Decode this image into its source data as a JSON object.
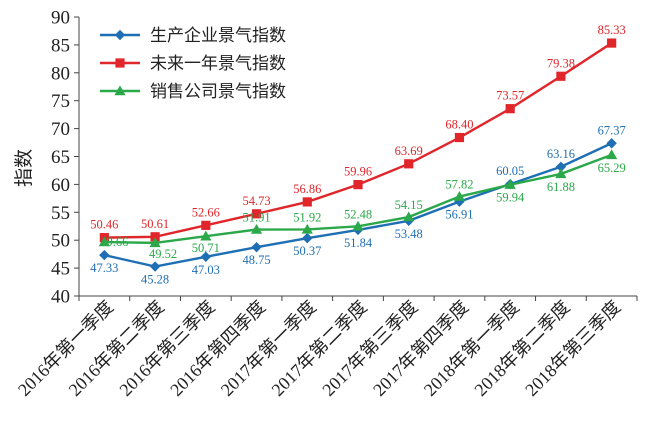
{
  "chart_data": {
    "type": "line",
    "ylabel": "指数",
    "xlabel": "",
    "ylim": [
      40,
      90
    ],
    "yticks": [
      40,
      45,
      50,
      55,
      60,
      65,
      70,
      75,
      80,
      85,
      90
    ],
    "grid": false,
    "legend_position": "top-left",
    "categories": [
      "2016年第一季度",
      "2016年第二季度",
      "2016年第三季度",
      "2016年第四季度",
      "2017年第一季度",
      "2017年第二季度",
      "2017年第三季度",
      "2017年第四季度",
      "2018年第一季度",
      "2018年第二季度",
      "2018年第三季度"
    ],
    "series": [
      {
        "name": "生产企业景气指数",
        "color": "#1f6fb4",
        "marker": "diamond",
        "values": [
          47.33,
          45.28,
          47.03,
          48.75,
          50.37,
          51.84,
          53.48,
          56.91,
          60.05,
          63.16,
          67.37
        ],
        "labels": [
          "47.33",
          "45.28",
          "47.03",
          "48.75",
          "50.37",
          "51.84",
          "53.48",
          "56.91",
          "60.05",
          "63.16",
          "67.37"
        ]
      },
      {
        "name": "未来一年景气指数",
        "color": "#e0262a",
        "marker": "square",
        "values": [
          50.46,
          50.61,
          52.66,
          54.73,
          56.86,
          59.96,
          63.69,
          68.4,
          73.57,
          79.38,
          85.33
        ],
        "labels": [
          "50.46",
          "50.61",
          "52.66",
          "54.73",
          "56.86",
          "59.96",
          "63.69",
          "68.40",
          "73.57",
          "79.38",
          "85.33"
        ]
      },
      {
        "name": "销售公司景气指数",
        "color": "#2aa84a",
        "marker": "triangle",
        "values": [
          49.66,
          49.52,
          50.71,
          51.91,
          51.92,
          52.48,
          54.15,
          57.82,
          59.94,
          61.88,
          65.29
        ],
        "labels": [
          "49.66",
          "49.52",
          "50.71",
          "51.91",
          "51.92",
          "52.48",
          "54.15",
          "57.82",
          "59.94",
          "61.88",
          "65.29"
        ]
      }
    ]
  }
}
